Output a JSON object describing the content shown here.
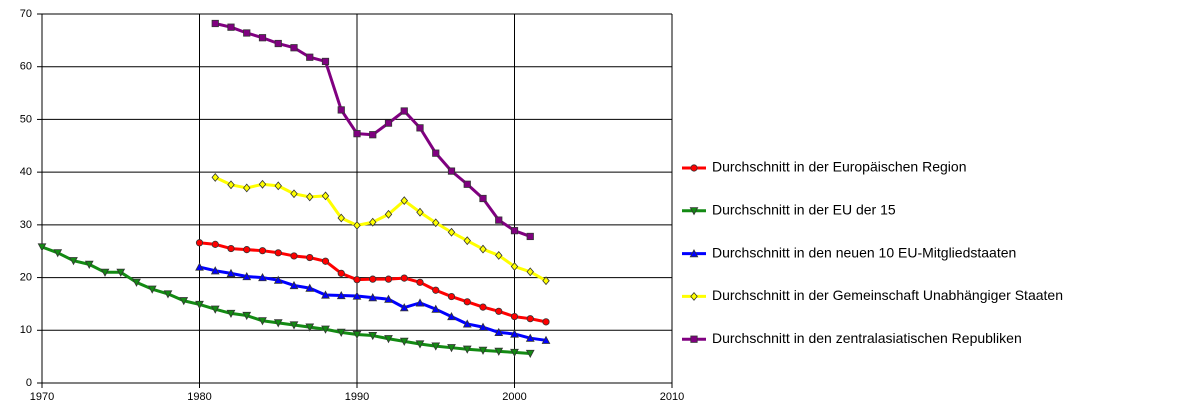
{
  "chart_data": {
    "type": "line",
    "x": [
      1970,
      1971,
      1972,
      1973,
      1974,
      1975,
      1976,
      1977,
      1978,
      1979,
      1980,
      1981,
      1982,
      1983,
      1984,
      1985,
      1986,
      1987,
      1988,
      1989,
      1990,
      1991,
      1992,
      1993,
      1994,
      1995,
      1996,
      1997,
      1998,
      1999,
      2000,
      2001,
      2002
    ],
    "series": [
      {
        "name": "Durchschnitt in der Europäischen Region",
        "color": "#ff0000",
        "marker": "circle",
        "values": [
          null,
          null,
          null,
          null,
          null,
          null,
          null,
          null,
          null,
          null,
          26.6,
          26.3,
          25.5,
          25.3,
          25.1,
          24.7,
          24.1,
          23.8,
          23.1,
          20.8,
          19.6,
          19.7,
          19.7,
          19.9,
          19.1,
          17.6,
          16.4,
          15.4,
          14.4,
          13.6,
          12.6,
          12.2,
          11.6
        ]
      },
      {
        "name": "Durchschnitt in der EU der 15",
        "color": "#138a13",
        "marker": "triangle-down",
        "values": [
          25.8,
          24.7,
          23.2,
          22.5,
          21.0,
          21.0,
          19.1,
          17.8,
          16.9,
          15.6,
          14.9,
          14.0,
          13.2,
          12.8,
          11.8,
          11.4,
          11.0,
          10.6,
          10.2,
          9.6,
          9.2,
          9.0,
          8.4,
          7.9,
          7.4,
          7.0,
          6.7,
          6.4,
          6.2,
          6.0,
          5.8,
          5.6,
          null
        ]
      },
      {
        "name": "Durchschnitt in den neuen 10 EU-Mitgliedstaaten",
        "color": "#0000ff",
        "marker": "triangle-up",
        "values": [
          null,
          null,
          null,
          null,
          null,
          null,
          null,
          null,
          null,
          null,
          22.0,
          21.3,
          20.8,
          20.2,
          20.0,
          19.5,
          18.5,
          18.0,
          16.7,
          16.6,
          16.5,
          16.2,
          15.9,
          14.3,
          15.2,
          14.0,
          12.6,
          11.2,
          10.6,
          9.6,
          9.3,
          8.5,
          8.1
        ]
      },
      {
        "name": "Durchschnitt in der Gemeinschaft Unabhängiger Staaten",
        "color": "#ffff00",
        "marker": "diamond",
        "values": [
          null,
          null,
          null,
          null,
          null,
          null,
          null,
          null,
          null,
          null,
          null,
          39.0,
          37.6,
          37.0,
          37.7,
          37.4,
          35.9,
          35.3,
          35.5,
          31.3,
          29.9,
          30.5,
          32.0,
          34.6,
          32.4,
          30.4,
          28.6,
          27.0,
          25.4,
          24.2,
          22.1,
          21.1,
          19.4
        ]
      },
      {
        "name": "Durchschnitt in den zentralasiatischen Republiken",
        "color": "#800080",
        "marker": "square",
        "values": [
          null,
          null,
          null,
          null,
          null,
          null,
          null,
          null,
          null,
          null,
          null,
          68.2,
          67.5,
          66.4,
          65.5,
          64.4,
          63.6,
          61.8,
          61.0,
          51.8,
          47.3,
          47.1,
          49.3,
          51.6,
          48.4,
          43.6,
          40.2,
          37.7,
          35.0,
          30.9,
          28.9,
          27.8,
          null
        ]
      }
    ],
    "xlim": [
      1970,
      2010
    ],
    "xticks": [
      1970,
      1980,
      1990,
      2000,
      2010
    ],
    "ylim": [
      0,
      70
    ],
    "yticks": [
      0,
      10,
      20,
      30,
      40,
      50,
      60,
      70
    ],
    "grid": true,
    "legend": "right"
  }
}
